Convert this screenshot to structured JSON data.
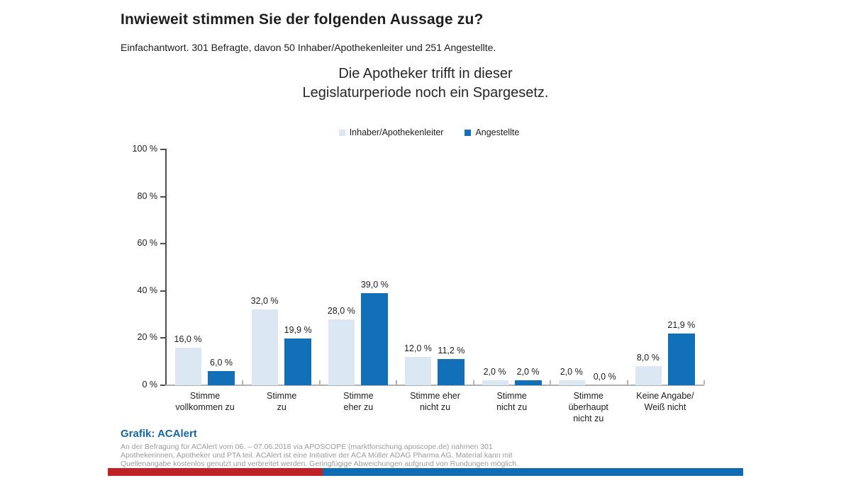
{
  "page": {
    "title": "Inwieweit stimmen Sie der folgenden Aussage zu?",
    "subtitle": "Einfachantwort. 301 Befragte, davon 50 Inhaber/Apothekenleiter und 251 Angestellte."
  },
  "chart_data": {
    "type": "bar",
    "title": "Die Apotheker trifft in dieser\nLegislaturperiode noch ein Spargesetz.",
    "categories": [
      "Stimme vollkommen zu",
      "Stimme zu",
      "Stimme eher zu",
      "Stimme eher nicht zu",
      "Stimme nicht zu",
      "Stimme überhaupt nicht zu",
      "Keine Angabe/Weiß nicht"
    ],
    "category_display": [
      "Stimme\nvollkommen zu",
      "Stimme\nzu",
      "Stimme\neher zu",
      "Stimme eher\nnicht zu",
      "Stimme\nnicht zu",
      "Stimme\nüberhaupt\nnicht zu",
      "Keine Angabe/\nWeiß nicht"
    ],
    "series": [
      {
        "name": "Inhaber/Apothekenleiter",
        "color": "#dbe8f4",
        "values": [
          16.0,
          32.0,
          28.0,
          12.0,
          2.0,
          2.0,
          8.0
        ],
        "labels": [
          "16,0 %",
          "32,0 %",
          "28,0 %",
          "12,0 %",
          "2,0 %",
          "2,0 %",
          "8,0 %"
        ]
      },
      {
        "name": "Angestellte",
        "color": "#1170b8",
        "values": [
          6.0,
          19.9,
          39.0,
          11.2,
          2.0,
          0.0,
          21.9
        ],
        "labels": [
          "6,0 %",
          "19,9 %",
          "39,0 %",
          "11,2 %",
          "2,0 %",
          "0,0 %",
          "21,9 %"
        ]
      }
    ],
    "xlabel": "",
    "ylabel": "",
    "ylim": [
      0,
      100
    ],
    "yticks": [
      {
        "value": 0,
        "label": "0 %"
      },
      {
        "value": 20,
        "label": "20 %"
      },
      {
        "value": 40,
        "label": "40 %"
      },
      {
        "value": 60,
        "label": "60 %"
      },
      {
        "value": 80,
        "label": "80 %"
      },
      {
        "value": 100,
        "label": "100 %"
      }
    ],
    "grid": false,
    "legend_position": "top",
    "value_label_format": "german-decimal-comma"
  },
  "footer": {
    "source_label": "Grafik: ACAlert",
    "note_lines": [
      "An der Befragung für ACAlert vom 06. – 07.06.2018 via APOSCOPE (marktforschung.aposcope.de) nahmen 301",
      "Apothekerinnen, Apotheker und PTA teil. ACAlert ist eine Initiative der ACA Müller ADAG Pharma AG. Material kann mit",
      "Quellenangabe kostenlos genutzt und verbreitet werden. Geringfügige Abweichungen aufgrund von Rundungen möglich."
    ],
    "strip_colors": {
      "red": "#bf2126",
      "blue": "#0f6cb2"
    }
  }
}
